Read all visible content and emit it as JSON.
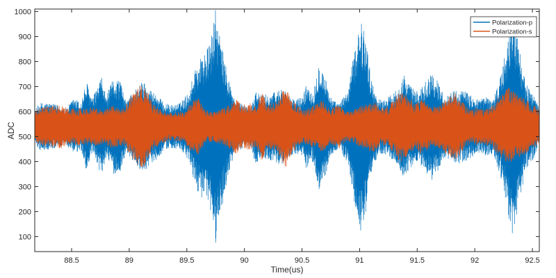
{
  "chart_data": {
    "type": "line",
    "title": "",
    "xlabel": "Time(us)",
    "ylabel": "ADC",
    "xlim": [
      88.18,
      92.56
    ],
    "ylim": [
      40,
      1010
    ],
    "xticks": [
      88.5,
      89,
      89.5,
      90,
      90.5,
      91,
      91.5,
      92,
      92.5
    ],
    "yticks": [
      100,
      200,
      300,
      400,
      500,
      600,
      700,
      800,
      900,
      1000
    ],
    "x_tick_labels": [
      "88.5",
      "89",
      "89.5",
      "90",
      "90.5",
      "91",
      "91.5",
      "92",
      "92.5"
    ],
    "y_tick_labels": [
      "100",
      "200",
      "300",
      "400",
      "500",
      "600",
      "700",
      "800",
      "900",
      "1000"
    ],
    "grid": false,
    "legend_position": "top-right",
    "series": [
      {
        "name": "Polarization-p",
        "color": "#0072BD",
        "baseline": 540,
        "envelope": [
          {
            "t": 88.18,
            "a": 60
          },
          {
            "t": 88.22,
            "a": 95
          },
          {
            "t": 88.3,
            "a": 95
          },
          {
            "t": 88.38,
            "a": 85
          },
          {
            "t": 88.45,
            "a": 70
          },
          {
            "t": 88.52,
            "a": 115
          },
          {
            "t": 88.58,
            "a": 95
          },
          {
            "t": 88.63,
            "a": 180
          },
          {
            "t": 88.68,
            "a": 110
          },
          {
            "t": 88.76,
            "a": 200
          },
          {
            "t": 88.8,
            "a": 120
          },
          {
            "t": 88.86,
            "a": 190
          },
          {
            "t": 88.92,
            "a": 190
          },
          {
            "t": 88.97,
            "a": 100
          },
          {
            "t": 89.05,
            "a": 150
          },
          {
            "t": 89.12,
            "a": 185
          },
          {
            "t": 89.18,
            "a": 150
          },
          {
            "t": 89.24,
            "a": 130
          },
          {
            "t": 89.3,
            "a": 95
          },
          {
            "t": 89.38,
            "a": 85
          },
          {
            "t": 89.44,
            "a": 95
          },
          {
            "t": 89.52,
            "a": 140
          },
          {
            "t": 89.58,
            "a": 250
          },
          {
            "t": 89.64,
            "a": 290
          },
          {
            "t": 89.7,
            "a": 330
          },
          {
            "t": 89.75,
            "a": 470
          },
          {
            "t": 89.8,
            "a": 330
          },
          {
            "t": 89.86,
            "a": 200
          },
          {
            "t": 89.92,
            "a": 100
          },
          {
            "t": 89.98,
            "a": 90
          },
          {
            "t": 90.05,
            "a": 75
          },
          {
            "t": 90.1,
            "a": 150
          },
          {
            "t": 90.14,
            "a": 125
          },
          {
            "t": 90.2,
            "a": 130
          },
          {
            "t": 90.27,
            "a": 140
          },
          {
            "t": 90.33,
            "a": 160
          },
          {
            "t": 90.38,
            "a": 120
          },
          {
            "t": 90.45,
            "a": 110
          },
          {
            "t": 90.5,
            "a": 120
          },
          {
            "t": 90.54,
            "a": 170
          },
          {
            "t": 90.6,
            "a": 140
          },
          {
            "t": 90.65,
            "a": 270
          },
          {
            "t": 90.7,
            "a": 200
          },
          {
            "t": 90.76,
            "a": 110
          },
          {
            "t": 90.82,
            "a": 90
          },
          {
            "t": 90.9,
            "a": 150
          },
          {
            "t": 90.96,
            "a": 320
          },
          {
            "t": 91.0,
            "a": 430
          },
          {
            "t": 91.05,
            "a": 380
          },
          {
            "t": 91.1,
            "a": 190
          },
          {
            "t": 91.16,
            "a": 110
          },
          {
            "t": 91.22,
            "a": 110
          },
          {
            "t": 91.28,
            "a": 130
          },
          {
            "t": 91.33,
            "a": 155
          },
          {
            "t": 91.38,
            "a": 210
          },
          {
            "t": 91.44,
            "a": 165
          },
          {
            "t": 91.5,
            "a": 140
          },
          {
            "t": 91.55,
            "a": 165
          },
          {
            "t": 91.62,
            "a": 220
          },
          {
            "t": 91.68,
            "a": 180
          },
          {
            "t": 91.74,
            "a": 120
          },
          {
            "t": 91.8,
            "a": 140
          },
          {
            "t": 91.86,
            "a": 150
          },
          {
            "t": 91.92,
            "a": 140
          },
          {
            "t": 91.98,
            "a": 120
          },
          {
            "t": 92.04,
            "a": 110
          },
          {
            "t": 92.1,
            "a": 120
          },
          {
            "t": 92.16,
            "a": 110
          },
          {
            "t": 92.22,
            "a": 200
          },
          {
            "t": 92.28,
            "a": 320
          },
          {
            "t": 92.33,
            "a": 470
          },
          {
            "t": 92.38,
            "a": 330
          },
          {
            "t": 92.44,
            "a": 170
          },
          {
            "t": 92.5,
            "a": 140
          },
          {
            "t": 92.56,
            "a": 70
          }
        ]
      },
      {
        "name": "Polarization-s",
        "color": "#D95319",
        "baseline": 540,
        "envelope": [
          {
            "t": 88.18,
            "a": 60
          },
          {
            "t": 88.25,
            "a": 80
          },
          {
            "t": 88.32,
            "a": 80
          },
          {
            "t": 88.4,
            "a": 90
          },
          {
            "t": 88.48,
            "a": 70
          },
          {
            "t": 88.55,
            "a": 75
          },
          {
            "t": 88.62,
            "a": 75
          },
          {
            "t": 88.7,
            "a": 80
          },
          {
            "t": 88.78,
            "a": 70
          },
          {
            "t": 88.84,
            "a": 85
          },
          {
            "t": 88.9,
            "a": 80
          },
          {
            "t": 88.95,
            "a": 75
          },
          {
            "t": 89.0,
            "a": 110
          },
          {
            "t": 89.05,
            "a": 140
          },
          {
            "t": 89.1,
            "a": 170
          },
          {
            "t": 89.15,
            "a": 150
          },
          {
            "t": 89.2,
            "a": 95
          },
          {
            "t": 89.27,
            "a": 70
          },
          {
            "t": 89.35,
            "a": 55
          },
          {
            "t": 89.42,
            "a": 60
          },
          {
            "t": 89.48,
            "a": 60
          },
          {
            "t": 89.55,
            "a": 110
          },
          {
            "t": 89.6,
            "a": 115
          },
          {
            "t": 89.66,
            "a": 65
          },
          {
            "t": 89.72,
            "a": 60
          },
          {
            "t": 89.8,
            "a": 70
          },
          {
            "t": 89.86,
            "a": 85
          },
          {
            "t": 89.93,
            "a": 110
          },
          {
            "t": 89.98,
            "a": 85
          },
          {
            "t": 90.04,
            "a": 95
          },
          {
            "t": 90.1,
            "a": 80
          },
          {
            "t": 90.15,
            "a": 135
          },
          {
            "t": 90.2,
            "a": 90
          },
          {
            "t": 90.25,
            "a": 95
          },
          {
            "t": 90.3,
            "a": 120
          },
          {
            "t": 90.36,
            "a": 165
          },
          {
            "t": 90.42,
            "a": 100
          },
          {
            "t": 90.5,
            "a": 70
          },
          {
            "t": 90.56,
            "a": 75
          },
          {
            "t": 90.62,
            "a": 90
          },
          {
            "t": 90.68,
            "a": 105
          },
          {
            "t": 90.74,
            "a": 70
          },
          {
            "t": 90.82,
            "a": 90
          },
          {
            "t": 90.88,
            "a": 60
          },
          {
            "t": 90.95,
            "a": 65
          },
          {
            "t": 91.0,
            "a": 80
          },
          {
            "t": 91.06,
            "a": 90
          },
          {
            "t": 91.12,
            "a": 105
          },
          {
            "t": 91.18,
            "a": 75
          },
          {
            "t": 91.25,
            "a": 80
          },
          {
            "t": 91.3,
            "a": 110
          },
          {
            "t": 91.36,
            "a": 150
          },
          {
            "t": 91.42,
            "a": 120
          },
          {
            "t": 91.48,
            "a": 90
          },
          {
            "t": 91.54,
            "a": 110
          },
          {
            "t": 91.6,
            "a": 90
          },
          {
            "t": 91.66,
            "a": 80
          },
          {
            "t": 91.72,
            "a": 95
          },
          {
            "t": 91.78,
            "a": 120
          },
          {
            "t": 91.84,
            "a": 135
          },
          {
            "t": 91.9,
            "a": 95
          },
          {
            "t": 91.96,
            "a": 65
          },
          {
            "t": 92.02,
            "a": 75
          },
          {
            "t": 92.08,
            "a": 70
          },
          {
            "t": 92.14,
            "a": 80
          },
          {
            "t": 92.2,
            "a": 115
          },
          {
            "t": 92.24,
            "a": 135
          },
          {
            "t": 92.29,
            "a": 160
          },
          {
            "t": 92.34,
            "a": 140
          },
          {
            "t": 92.4,
            "a": 120
          },
          {
            "t": 92.47,
            "a": 100
          },
          {
            "t": 92.52,
            "a": 85
          },
          {
            "t": 92.56,
            "a": 70
          }
        ]
      }
    ]
  }
}
